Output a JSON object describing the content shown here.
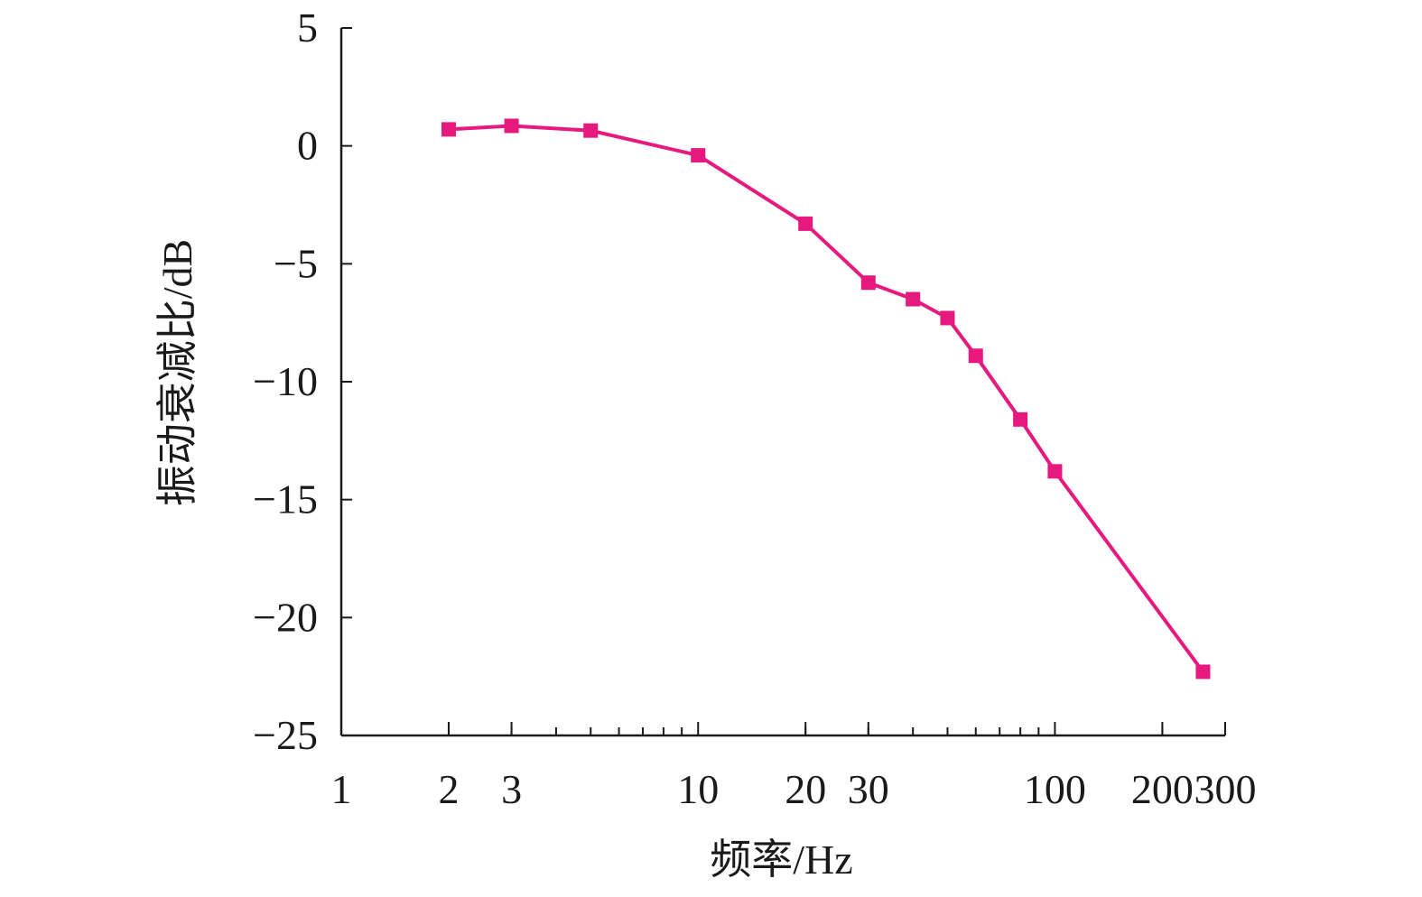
{
  "chart_data": {
    "type": "line",
    "xlabel": "频率/Hz",
    "ylabel": "振动衰减比/dB",
    "x_scale": "log",
    "xlim": [
      1,
      300
    ],
    "ylim": [
      -25,
      5
    ],
    "x_ticks": [
      1,
      2,
      3,
      10,
      20,
      30,
      100,
      200,
      300
    ],
    "x_tick_labels": [
      "1",
      "2",
      "3",
      "10",
      "20",
      "30",
      "100",
      "200",
      "300"
    ],
    "y_ticks": [
      5,
      0,
      -5,
      -10,
      -15,
      -20,
      -25
    ],
    "y_tick_labels": [
      "5",
      "0",
      "−5",
      "−10",
      "−15",
      "−20",
      "−25"
    ],
    "grid": false,
    "series": [
      {
        "color": "#e6197e",
        "marker": "square",
        "x": [
          2,
          3,
          5,
          10,
          20,
          30,
          40,
          50,
          60,
          80,
          100,
          260
        ],
        "y": [
          0.7,
          0.85,
          0.65,
          -0.4,
          -3.3,
          -5.8,
          -6.5,
          -7.3,
          -8.9,
          -11.6,
          -13.8,
          -22.3
        ]
      }
    ]
  }
}
